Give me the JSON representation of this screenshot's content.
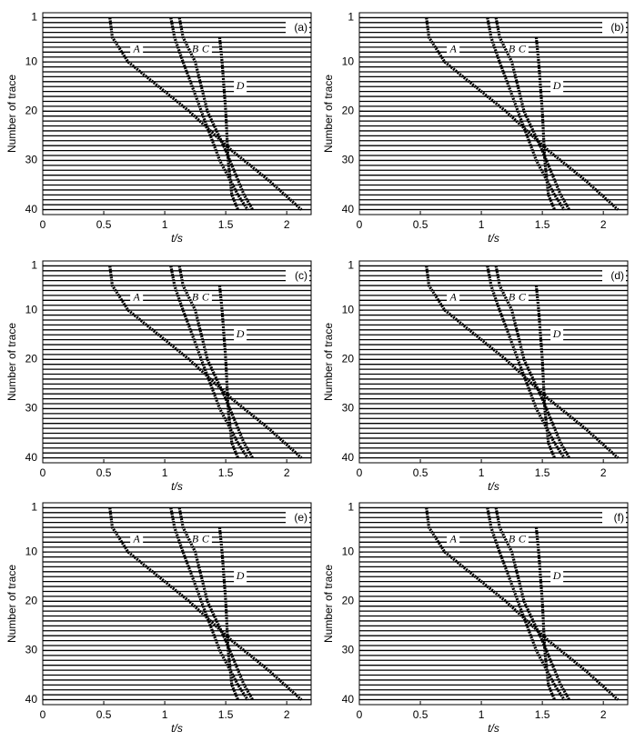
{
  "chart_data": [
    {
      "type": "wiggle",
      "panel_label": "(a)",
      "xlabel": "t/s",
      "ylabel": "Number of trace",
      "xlim": [
        0,
        2.2
      ],
      "xticks": [
        0,
        0.5,
        1,
        1.5,
        2
      ],
      "ylim": [
        0,
        41
      ],
      "yticks": [
        1,
        10,
        20,
        30,
        40
      ],
      "series": [
        {
          "name": "A",
          "color": "#000000",
          "x": [
            0.55,
            0.57,
            0.7,
            0.95,
            1.2,
            1.55,
            1.85,
            2.12
          ],
          "values": [
            1,
            5,
            10,
            15,
            20,
            28,
            34,
            40
          ]
        },
        {
          "name": "B",
          "color": "#000000",
          "x": [
            1.05,
            1.08,
            1.15,
            1.3,
            1.45,
            1.6,
            1.68
          ],
          "values": [
            1,
            5,
            10,
            20,
            30,
            37,
            40
          ]
        },
        {
          "name": "C",
          "color": "#000000",
          "x": [
            1.12,
            1.15,
            1.25,
            1.35,
            1.5,
            1.65,
            1.72
          ],
          "values": [
            1,
            5,
            10,
            20,
            28,
            37,
            40
          ]
        },
        {
          "name": "D",
          "color": "#000000",
          "x": [
            1.45,
            1.47,
            1.5,
            1.52,
            1.55,
            1.6
          ],
          "values": [
            5,
            10,
            20,
            30,
            37,
            40
          ]
        }
      ]
    },
    {
      "type": "wiggle",
      "panel_label": "(b)",
      "xlabel": "t/s",
      "ylabel": "Number of trace",
      "xlim": [
        0,
        2.2
      ],
      "xticks": [
        0,
        0.5,
        1,
        1.5,
        2
      ],
      "ylim": [
        0,
        41
      ],
      "yticks": [
        1,
        10,
        20,
        30,
        40
      ],
      "series": [
        {
          "name": "A",
          "color": "#000000",
          "x": [
            0.55,
            0.57,
            0.7,
            0.95,
            1.2,
            1.55,
            1.85,
            2.12
          ],
          "values": [
            1,
            5,
            10,
            15,
            20,
            28,
            34,
            40
          ]
        },
        {
          "name": "B",
          "color": "#000000",
          "x": [
            1.05,
            1.08,
            1.15,
            1.3,
            1.45,
            1.6,
            1.68
          ],
          "values": [
            1,
            5,
            10,
            20,
            30,
            37,
            40
          ]
        },
        {
          "name": "C",
          "color": "#000000",
          "x": [
            1.12,
            1.15,
            1.25,
            1.35,
            1.5,
            1.65,
            1.72
          ],
          "values": [
            1,
            5,
            10,
            20,
            28,
            37,
            40
          ]
        },
        {
          "name": "D",
          "color": "#000000",
          "x": [
            1.45,
            1.47,
            1.5,
            1.52,
            1.55,
            1.6
          ],
          "values": [
            5,
            10,
            20,
            30,
            37,
            40
          ]
        }
      ]
    },
    {
      "type": "wiggle",
      "panel_label": "(c)",
      "xlabel": "t/s",
      "ylabel": "Number of trace",
      "xlim": [
        0,
        2.2
      ],
      "xticks": [
        0,
        0.5,
        1,
        1.5,
        2
      ],
      "ylim": [
        0,
        41
      ],
      "yticks": [
        1,
        10,
        20,
        30,
        40
      ],
      "series": [
        {
          "name": "A",
          "color": "#000000",
          "x": [
            0.55,
            0.57,
            0.7,
            0.95,
            1.2,
            1.55,
            1.85,
            2.12
          ],
          "values": [
            1,
            5,
            10,
            15,
            20,
            28,
            34,
            40
          ]
        },
        {
          "name": "B",
          "color": "#000000",
          "x": [
            1.05,
            1.08,
            1.15,
            1.3,
            1.45,
            1.6,
            1.68
          ],
          "values": [
            1,
            5,
            10,
            20,
            30,
            37,
            40
          ]
        },
        {
          "name": "C",
          "color": "#000000",
          "x": [
            1.12,
            1.15,
            1.25,
            1.35,
            1.5,
            1.65,
            1.72
          ],
          "values": [
            1,
            5,
            10,
            20,
            28,
            37,
            40
          ]
        },
        {
          "name": "D",
          "color": "#000000",
          "x": [
            1.45,
            1.47,
            1.5,
            1.52,
            1.55,
            1.6
          ],
          "values": [
            5,
            10,
            20,
            30,
            37,
            40
          ]
        }
      ]
    },
    {
      "type": "wiggle",
      "panel_label": "(d)",
      "xlabel": "t/s",
      "ylabel": "Number of trace",
      "xlim": [
        0,
        2.2
      ],
      "xticks": [
        0,
        0.5,
        1,
        1.5,
        2
      ],
      "ylim": [
        0,
        41
      ],
      "yticks": [
        1,
        10,
        20,
        30,
        40
      ],
      "series": [
        {
          "name": "A",
          "color": "#000000",
          "x": [
            0.55,
            0.57,
            0.7,
            0.95,
            1.2,
            1.55,
            1.85,
            2.12
          ],
          "values": [
            1,
            5,
            10,
            15,
            20,
            28,
            34,
            40
          ]
        },
        {
          "name": "B",
          "color": "#000000",
          "x": [
            1.05,
            1.08,
            1.15,
            1.3,
            1.45,
            1.6,
            1.68
          ],
          "values": [
            1,
            5,
            10,
            20,
            30,
            37,
            40
          ]
        },
        {
          "name": "C",
          "color": "#000000",
          "x": [
            1.12,
            1.15,
            1.25,
            1.35,
            1.5,
            1.65,
            1.72
          ],
          "values": [
            1,
            5,
            10,
            20,
            28,
            37,
            40
          ]
        },
        {
          "name": "D",
          "color": "#000000",
          "x": [
            1.45,
            1.47,
            1.5,
            1.52,
            1.55,
            1.6
          ],
          "values": [
            5,
            10,
            20,
            30,
            37,
            40
          ]
        }
      ]
    },
    {
      "type": "wiggle",
      "panel_label": "(e)",
      "xlabel": "t/s",
      "ylabel": "Number of trace",
      "xlim": [
        0,
        2.2
      ],
      "xticks": [
        0,
        0.5,
        1,
        1.5,
        2
      ],
      "ylim": [
        0,
        41
      ],
      "yticks": [
        1,
        10,
        20,
        30,
        40
      ],
      "series": [
        {
          "name": "A",
          "color": "#000000",
          "x": [
            0.55,
            0.57,
            0.7,
            0.95,
            1.2,
            1.55,
            1.85,
            2.12
          ],
          "values": [
            1,
            5,
            10,
            15,
            20,
            28,
            34,
            40
          ]
        },
        {
          "name": "B",
          "color": "#000000",
          "x": [
            1.05,
            1.08,
            1.15,
            1.3,
            1.45,
            1.6,
            1.68
          ],
          "values": [
            1,
            5,
            10,
            20,
            30,
            37,
            40
          ]
        },
        {
          "name": "C",
          "color": "#000000",
          "x": [
            1.12,
            1.15,
            1.25,
            1.35,
            1.5,
            1.65,
            1.72
          ],
          "values": [
            1,
            5,
            10,
            20,
            28,
            37,
            40
          ]
        },
        {
          "name": "D",
          "color": "#000000",
          "x": [
            1.45,
            1.47,
            1.5,
            1.52,
            1.55,
            1.6
          ],
          "values": [
            5,
            10,
            20,
            30,
            37,
            40
          ]
        }
      ]
    },
    {
      "type": "wiggle",
      "panel_label": "(f)",
      "xlabel": "t/s",
      "ylabel": "Number of trace",
      "xlim": [
        0,
        2.2
      ],
      "xticks": [
        0,
        0.5,
        1,
        1.5,
        2
      ],
      "ylim": [
        0,
        41
      ],
      "yticks": [
        1,
        10,
        20,
        30,
        40
      ],
      "series": [
        {
          "name": "A",
          "color": "#000000",
          "x": [
            0.55,
            0.57,
            0.7,
            0.95,
            1.2,
            1.55,
            1.85,
            2.12
          ],
          "values": [
            1,
            5,
            10,
            15,
            20,
            28,
            34,
            40
          ]
        },
        {
          "name": "B",
          "color": "#000000",
          "x": [
            1.05,
            1.08,
            1.15,
            1.3,
            1.45,
            1.6,
            1.68
          ],
          "values": [
            1,
            5,
            10,
            20,
            30,
            37,
            40
          ]
        },
        {
          "name": "C",
          "color": "#000000",
          "x": [
            1.12,
            1.15,
            1.25,
            1.35,
            1.5,
            1.65,
            1.72
          ],
          "values": [
            1,
            5,
            10,
            20,
            28,
            37,
            40
          ]
        },
        {
          "name": "D",
          "color": "#000000",
          "x": [
            1.45,
            1.47,
            1.5,
            1.52,
            1.55,
            1.6
          ],
          "values": [
            5,
            10,
            20,
            30,
            37,
            40
          ]
        }
      ]
    }
  ]
}
